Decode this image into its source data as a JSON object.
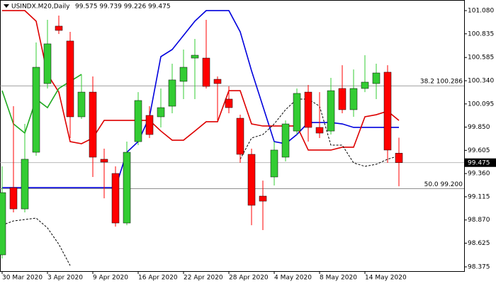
{
  "chart_data": {
    "type": "candlestick",
    "title": "USINDX.M20,Daily",
    "subtitle": "99.575 99.739 99.226 99.475",
    "categories": [
      "30 Mar 2020",
      null,
      null,
      null,
      "3 Apr 2020",
      null,
      null,
      null,
      "9 Apr 2020",
      null,
      null,
      null,
      "16 Apr 2020",
      null,
      null,
      null,
      "22 Apr 2020",
      null,
      null,
      null,
      "28 Apr 2020",
      null,
      null,
      null,
      "4 May 2020",
      null,
      null,
      null,
      "8 May 2020",
      null,
      null,
      null,
      "14 May 2020",
      null,
      null,
      null
    ],
    "open": [
      98.502,
      99.211,
      98.987,
      99.585,
      100.31,
      100.916,
      100.759,
      99.959,
      100.22,
      99.511,
      99.361,
      98.838,
      99.697,
      99.974,
      99.959,
      100.071,
      100.333,
      100.579,
      100.579,
      100.355,
      100.146,
      99.944,
      99.563,
      99.122,
      99.324,
      99.533,
      99.809,
      100.22,
      99.847,
      99.809,
      100.258,
      100.034,
      100.258,
      100.31,
      100.43,
      99.575
    ],
    "high": [
      99.436,
      100.071,
      99.884,
      100.744,
      100.983,
      101.028,
      100.856,
      100.407,
      100.385,
      99.623,
      99.436,
      99.697,
      100.22,
      100.071,
      100.258,
      100.519,
      100.669,
      100.781,
      100.983,
      100.385,
      100.28,
      99.981,
      99.623,
      99.286,
      99.697,
      99.921,
      100.258,
      100.295,
      100.22,
      100.37,
      100.504,
      100.459,
      100.609,
      100.519,
      100.504,
      99.739
    ],
    "low": [
      98.464,
      98.95,
      98.95,
      99.548,
      100.258,
      100.833,
      99.735,
      99.937,
      99.324,
      99.099,
      98.8,
      98.815,
      99.66,
      99.735,
      99.847,
      99.996,
      100.146,
      100.146,
      100.258,
      99.921,
      99.996,
      99.473,
      98.815,
      98.763,
      99.234,
      99.488,
      99.772,
      99.697,
      99.735,
      99.772,
      99.996,
      99.959,
      100.22,
      100.146,
      99.473,
      99.226
    ],
    "close": [
      99.159,
      98.987,
      99.511,
      100.482,
      100.729,
      100.871,
      99.959,
      100.22,
      99.533,
      99.481,
      98.838,
      99.585,
      100.131,
      99.772,
      100.056,
      100.348,
      100.482,
      100.609,
      100.28,
      100.31,
      100.056,
      99.563,
      99.025,
      99.069,
      99.608,
      99.884,
      100.206,
      99.847,
      99.787,
      100.235,
      100.034,
      100.258,
      100.325,
      100.422,
      99.608,
      99.475
    ],
    "up_color": "#33cc33",
    "down_color": "#ff0000",
    "lines": [
      {
        "color": "#0000dd",
        "dashed": false,
        "values": [
          99.211,
          99.211,
          99.211,
          99.211,
          99.211,
          99.211,
          99.211,
          99.211,
          99.211,
          99.211,
          99.211,
          99.585,
          99.697,
          99.959,
          100.594,
          100.669,
          100.818,
          100.968,
          101.08,
          101.08,
          101.08,
          100.856,
          100.445,
          100.071,
          99.697,
          99.675,
          99.772,
          99.899,
          99.899,
          99.899,
          99.884,
          99.847,
          99.847,
          99.847,
          99.847,
          99.847
        ]
      },
      {
        "color": "#dd0000",
        "dashed": false,
        "values": [
          101.08,
          101.08,
          101.08,
          100.968,
          100.407,
          100.22,
          99.697,
          99.675,
          99.735,
          99.921,
          99.921,
          99.921,
          99.921,
          99.921,
          99.809,
          99.712,
          99.712,
          99.809,
          99.907,
          99.907,
          100.235,
          100.235,
          99.884,
          99.862,
          99.862,
          99.862,
          99.862,
          99.608,
          99.608,
          99.608,
          99.638,
          99.638,
          99.959,
          99.981,
          100.019,
          99.921
        ]
      },
      {
        "color": "#22aa22",
        "dashed": false,
        "values": [
          100.235,
          99.884,
          99.787,
          100.146,
          100.056,
          100.258,
          100.333,
          100.407,
          null,
          null,
          null,
          null,
          null,
          null,
          null,
          null,
          null,
          null,
          null,
          null,
          null,
          null,
          null,
          null,
          null,
          null,
          null,
          null,
          null,
          null,
          null,
          null,
          null,
          null,
          null,
          null
        ]
      },
      {
        "color": "#000000",
        "dashed": true,
        "values": [
          98.815,
          98.86,
          98.875,
          98.89,
          98.786,
          98.614,
          98.389,
          null,
          null,
          null,
          null,
          null,
          null,
          null,
          null,
          null,
          null,
          null,
          null,
          null,
          null,
          99.511,
          99.735,
          99.772,
          99.884,
          100.034,
          100.146,
          100.146,
          100.071,
          99.66,
          99.66,
          99.473,
          99.436,
          99.458,
          99.511,
          99.548
        ]
      }
    ],
    "levels": [
      {
        "value": 100.286,
        "label": "38.2 100.286"
      },
      {
        "value": 99.2,
        "label": "50.0 99.200"
      }
    ],
    "last_price": 99.475,
    "ylim": [
      98.33,
      101.177
    ],
    "yticks": [
      {
        "value": 101.08,
        "label": "101.080"
      },
      {
        "value": 100.835,
        "label": "100.835"
      },
      {
        "value": 100.585,
        "label": "100.585"
      },
      {
        "value": 100.34,
        "label": "100.340"
      },
      {
        "value": 100.095,
        "label": "100.095"
      },
      {
        "value": 99.85,
        "label": "99.850"
      },
      {
        "value": 99.605,
        "label": "99.605"
      },
      {
        "value": 99.36,
        "label": "99.360"
      },
      {
        "value": 99.115,
        "label": "99.115"
      },
      {
        "value": 98.87,
        "label": "98.870"
      },
      {
        "value": 98.625,
        "label": "98.625"
      },
      {
        "value": 98.375,
        "label": "98.375"
      }
    ]
  }
}
